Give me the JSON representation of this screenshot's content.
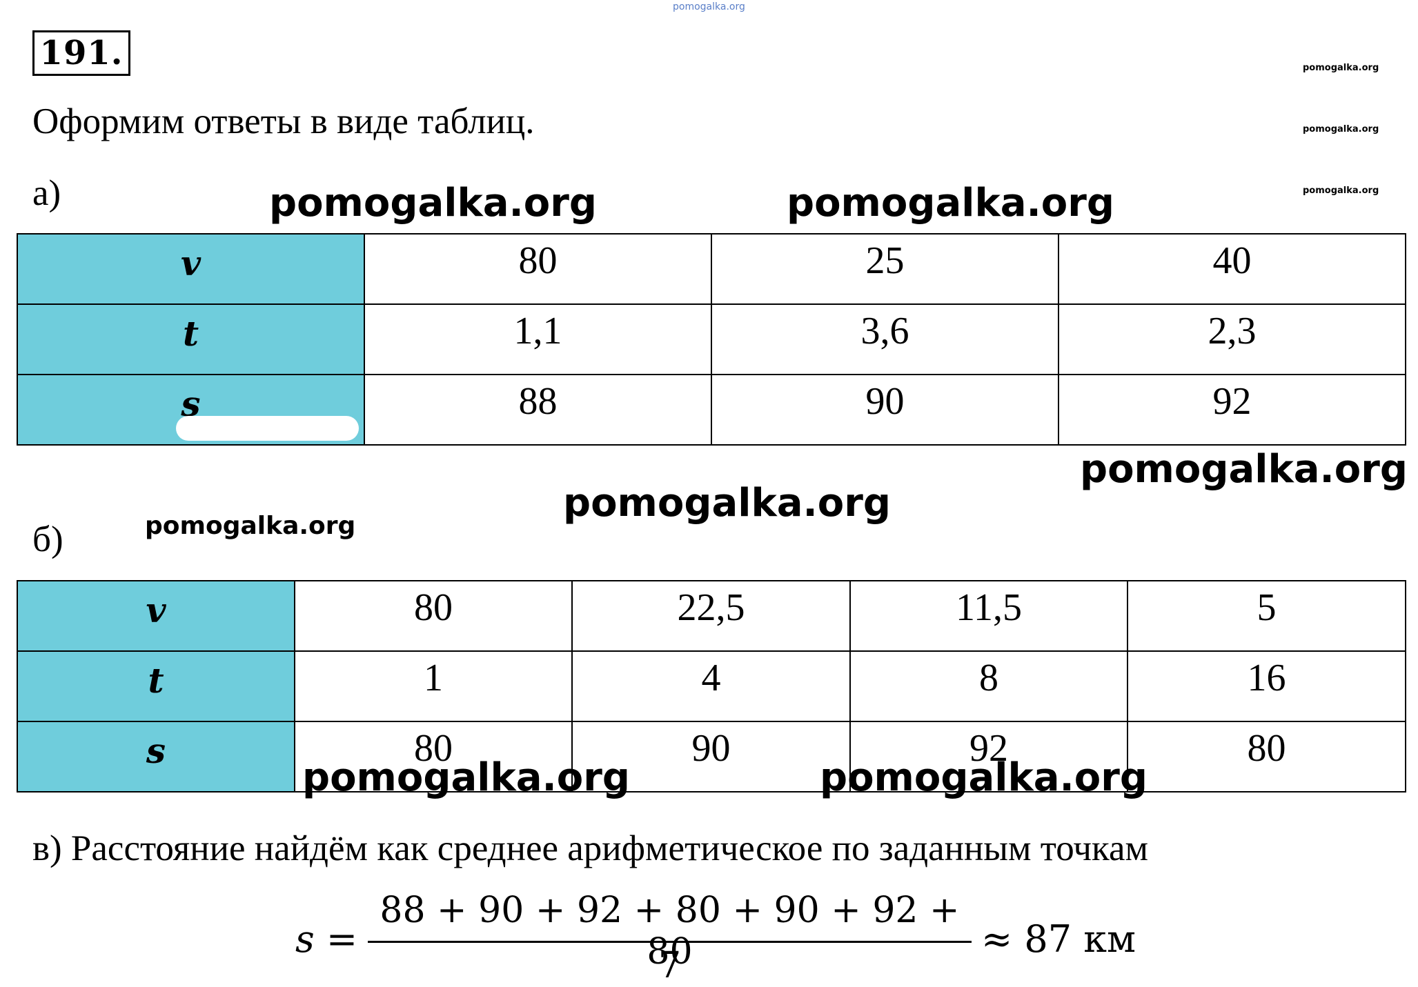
{
  "header": {
    "top_watermark": "pomogalka.org",
    "problem_number": "191.",
    "intro": "Оформим ответы в виде таблиц."
  },
  "watermarks": {
    "side_1": "pomogalka.org",
    "side_2": "pomogalka.org",
    "side_3": "pomogalka.org",
    "a_left": "pomogalka.org",
    "a_right": "pomogalka.org",
    "mid_right": "pomogalka.org",
    "mid_center": "pomogalka.org",
    "b_label_side": "pomogalka.org",
    "b_bottom_left": "pomogalka.org",
    "b_bottom_right": "pomogalka.org"
  },
  "part_a": {
    "label": "а)",
    "rows": [
      {
        "head": "v",
        "cells": [
          "80",
          "25",
          "40"
        ]
      },
      {
        "head": "t",
        "cells": [
          "1,1",
          "3,6",
          "2,3"
        ]
      },
      {
        "head": "s",
        "cells": [
          "88",
          "90",
          "92"
        ]
      }
    ]
  },
  "part_b": {
    "label": "б)",
    "rows": [
      {
        "head": "v",
        "cells": [
          "80",
          "22,5",
          "11,5",
          "5"
        ]
      },
      {
        "head": "t",
        "cells": [
          "1",
          "4",
          "8",
          "16"
        ]
      },
      {
        "head": "s",
        "cells": [
          "80",
          "90",
          "92",
          "80"
        ]
      }
    ]
  },
  "part_c": {
    "text": "в) Расстояние найдём как среднее арифметическое по заданным точкам",
    "formula": {
      "lhs": "s =",
      "numerator": "88 + 90 + 92 + 80 + 90 + 92 + 80",
      "denominator": "7",
      "result": "≈ 87 км"
    }
  }
}
